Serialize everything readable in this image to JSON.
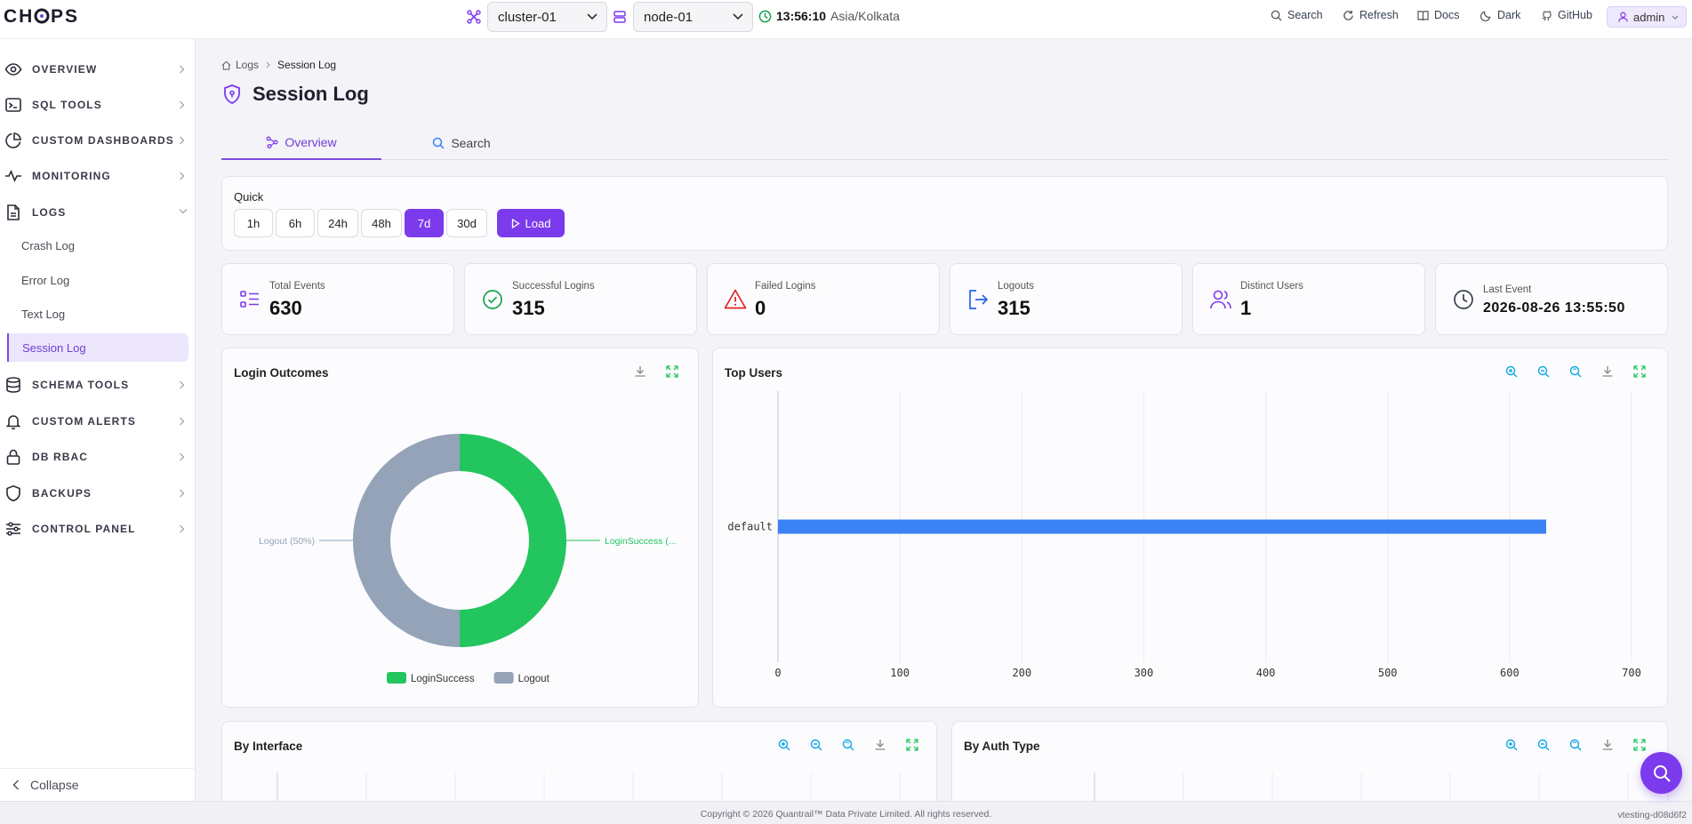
{
  "app": {
    "logo_text": "CHOPS"
  },
  "header": {
    "cluster_value": "cluster-01",
    "node_value": "node-01",
    "time": "13:56:10",
    "timezone": "Asia/Kolkata",
    "buttons": {
      "search": "Search",
      "refresh": "Refresh",
      "docs": "Docs",
      "theme": "Dark",
      "github": "GitHub"
    },
    "user": "admin"
  },
  "sidebar": {
    "items": [
      {
        "label": "OVERVIEW",
        "icon": "eye-icon"
      },
      {
        "label": "SQL TOOLS",
        "icon": "terminal-icon"
      },
      {
        "label": "CUSTOM DASHBOARDS",
        "icon": "pie-chart-icon"
      },
      {
        "label": "MONITORING",
        "icon": "activity-icon"
      },
      {
        "label": "LOGS",
        "icon": "file-icon"
      },
      {
        "label": "SCHEMA TOOLS",
        "icon": "database-icon"
      },
      {
        "label": "CUSTOM ALERTS",
        "icon": "bell-icon"
      },
      {
        "label": "DB RBAC",
        "icon": "lock-icon"
      },
      {
        "label": "BACKUPS",
        "icon": "shield-icon"
      },
      {
        "label": "CONTROL PANEL",
        "icon": "sliders-icon"
      }
    ],
    "log_items": [
      "Crash Log",
      "Error Log",
      "Text Log",
      "Session Log"
    ],
    "collapse_label": "Collapse"
  },
  "breadcrumb": {
    "root": "Logs",
    "current": "Session Log"
  },
  "page": {
    "title": "Session Log"
  },
  "tabs": [
    "Overview",
    "Search"
  ],
  "quick": {
    "label": "Quick",
    "ranges": [
      "1h",
      "6h",
      "24h",
      "48h",
      "7d",
      "30d"
    ],
    "selected": "7d",
    "load_label": "Load"
  },
  "stats": [
    {
      "label": "Total Events",
      "value": "630",
      "icon": "list-icon",
      "color": "#7c3aed"
    },
    {
      "label": "Successful Logins",
      "value": "315",
      "icon": "check-circle-icon",
      "color": "#16a34a"
    },
    {
      "label": "Failed Logins",
      "value": "0",
      "icon": "warning-icon",
      "color": "#dc2626"
    },
    {
      "label": "Logouts",
      "value": "315",
      "icon": "logout-icon",
      "color": "#2563eb"
    },
    {
      "label": "Distinct Users",
      "value": "1",
      "icon": "users-icon",
      "color": "#7c3aed"
    },
    {
      "label": "Last Event",
      "value": "2026-08-26 13:55:50",
      "icon": "clock-icon",
      "color": "#374151"
    }
  ],
  "charts": {
    "login_outcomes_title": "Login Outcomes",
    "top_users_title": "Top Users",
    "by_interface_title": "By Interface",
    "by_auth_type_title": "By Auth Type"
  },
  "chart_data": [
    {
      "type": "pie",
      "title": "Login Outcomes",
      "donut": true,
      "slices": [
        {
          "name": "LoginSuccess",
          "value": 315,
          "label": "LoginSuccess (...",
          "color": "#22c55e"
        },
        {
          "name": "Logout",
          "value": 315,
          "label": "Logout (50%)",
          "color": "#94a3b8"
        }
      ],
      "legend": [
        "LoginSuccess",
        "Logout"
      ],
      "legend_position": "bottom"
    },
    {
      "type": "bar",
      "orientation": "horizontal",
      "title": "Top Users",
      "categories": [
        "default"
      ],
      "values": [
        630
      ],
      "xlim": [
        0,
        700
      ],
      "xticks": [
        0,
        100,
        200,
        300,
        400,
        500,
        600,
        700
      ],
      "grid": true,
      "color": "#3b82f6"
    }
  ],
  "footer": {
    "copyright": "Copyright © 2026 Quantrail™ Data Private Limited. All rights reserved.",
    "version": "vtesting-d08d6f2"
  }
}
